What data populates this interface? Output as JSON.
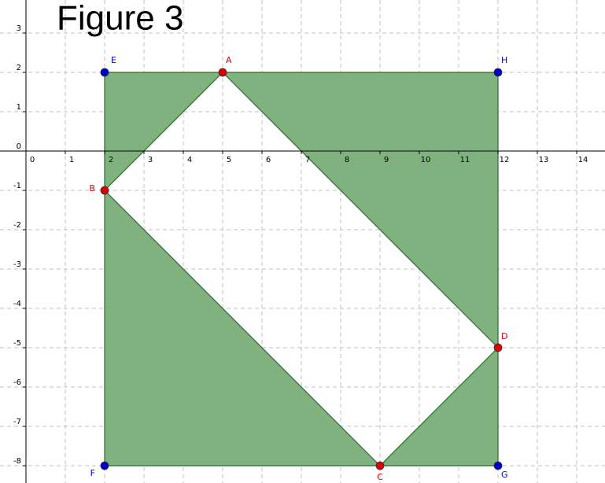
{
  "chart_data": {
    "type": "geometry",
    "title": "Figure 3",
    "xlim": [
      -0.66,
      14.72
    ],
    "ylim": [
      -8.44,
      3.84
    ],
    "xticks": [
      0,
      1,
      2,
      3,
      4,
      5,
      6,
      7,
      8,
      9,
      10,
      11,
      12,
      13,
      14
    ],
    "yticks": [
      -8,
      -7,
      -6,
      -5,
      -4,
      -3,
      -2,
      -1,
      0,
      1,
      2,
      3
    ],
    "grid": true,
    "fill": "#7fb27f",
    "edge": "#2e6b2e",
    "series": [
      {
        "color": "#0000cc",
        "points": [
          {
            "label": "E",
            "x": 2,
            "y": 2
          },
          {
            "label": "F",
            "x": 2,
            "y": -8
          },
          {
            "label": "G",
            "x": 12,
            "y": -8
          },
          {
            "label": "H",
            "x": 12,
            "y": 2
          }
        ]
      },
      {
        "color": "#dd0000",
        "points": [
          {
            "label": "A",
            "x": 5,
            "y": 2
          },
          {
            "label": "B",
            "x": 2,
            "y": -1
          },
          {
            "label": "C",
            "x": 9,
            "y": -8
          },
          {
            "label": "D",
            "x": 12,
            "y": -5
          }
        ]
      }
    ]
  }
}
